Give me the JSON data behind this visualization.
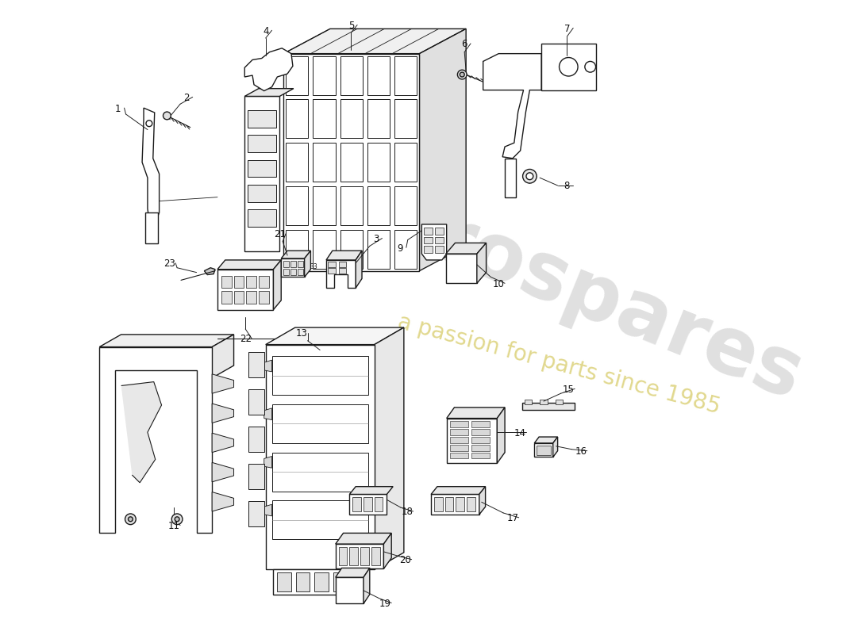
{
  "bg": "#ffffff",
  "lc": "#1a1a1a",
  "lw": 1.0,
  "wm1": "eurospares",
  "wm2": "a passion for parts since 1985",
  "figw": 11.0,
  "figh": 8.0,
  "dpi": 100
}
